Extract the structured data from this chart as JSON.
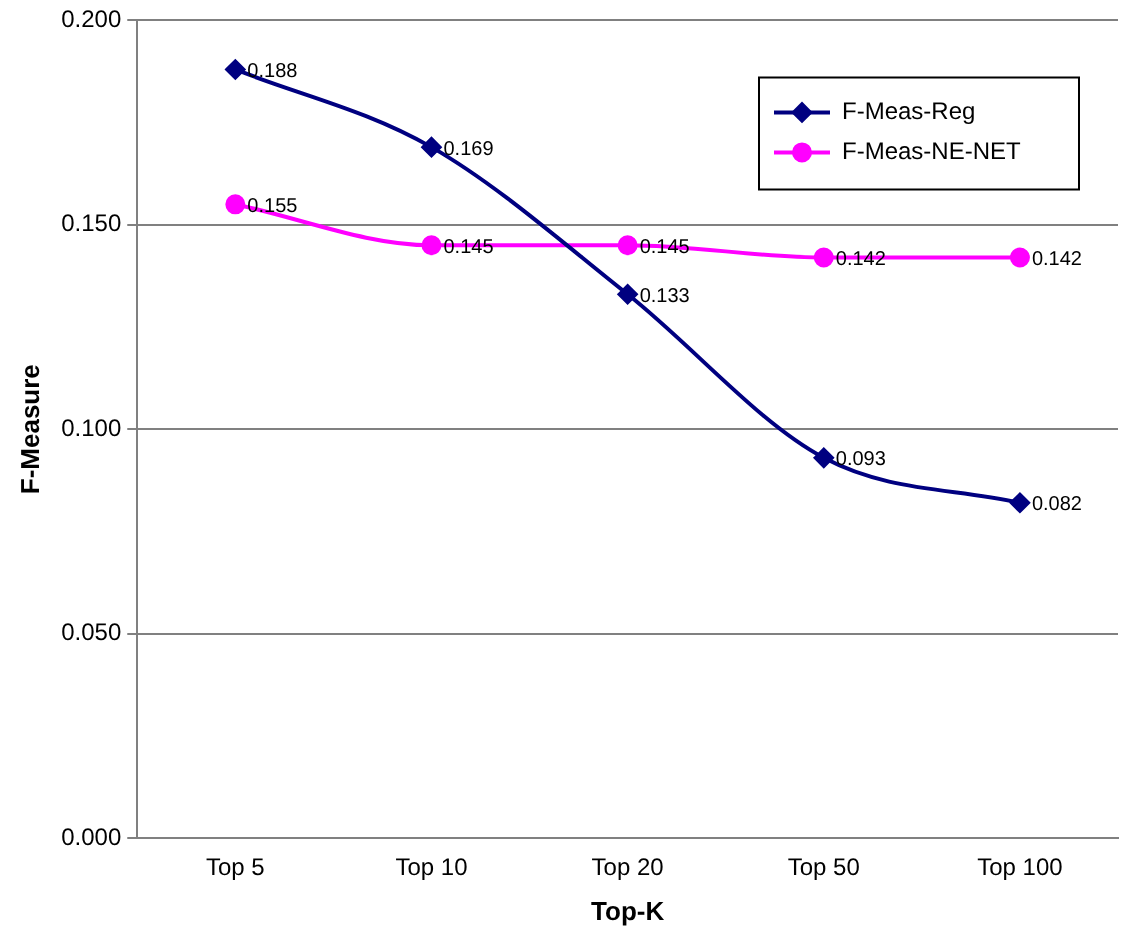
{
  "chart_data": {
    "type": "line",
    "xlabel": "Top-K",
    "ylabel": "F-Measure",
    "categories": [
      "Top 5",
      "Top 10",
      "Top 20",
      "Top 50",
      "Top 100"
    ],
    "series": [
      {
        "name": "F-Meas-Reg",
        "color": "#000080",
        "marker": "diamond",
        "values": [
          0.188,
          0.169,
          0.133,
          0.093,
          0.082
        ]
      },
      {
        "name": "F-Meas-NE-NET",
        "color": "#ff00ff",
        "marker": "circle",
        "values": [
          0.155,
          0.145,
          0.145,
          0.142,
          0.142
        ]
      }
    ],
    "ylim": [
      0,
      0.2
    ],
    "yticks": [
      {
        "value": 0,
        "label": "0.000"
      },
      {
        "value": 0.05,
        "label": "0.050"
      },
      {
        "value": 0.1,
        "label": "0.100"
      },
      {
        "value": 0.15,
        "label": "0.150"
      },
      {
        "value": 0.2,
        "label": "0.200"
      }
    ],
    "grid": "y",
    "legend": "top right",
    "data_labels": true
  }
}
